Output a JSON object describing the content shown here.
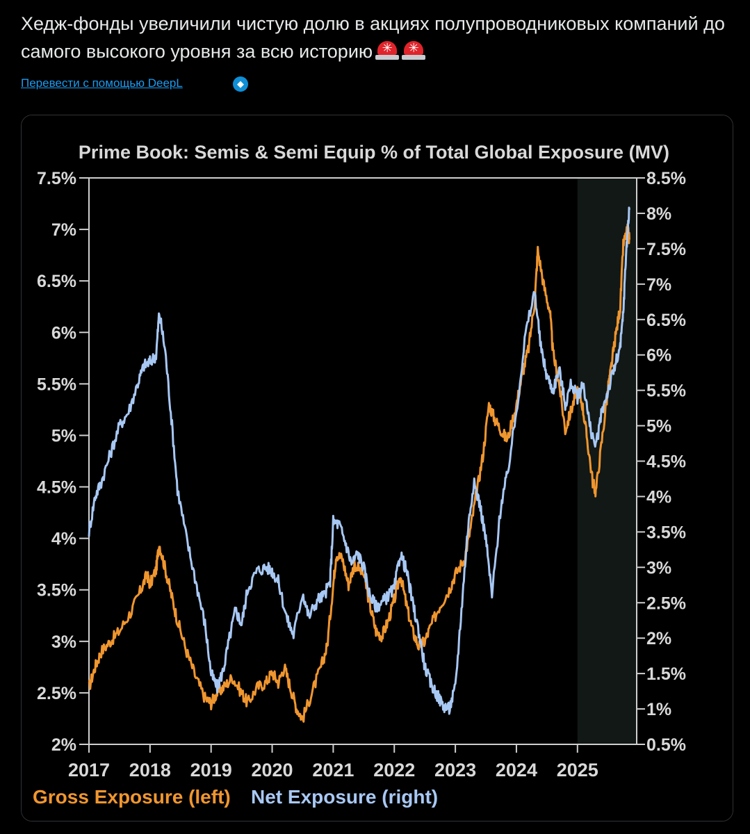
{
  "post": {
    "text": "Хедж-фонды увеличили чистую долю в акциях полупроводниковых компаний до самого высокого уровня за всю историю",
    "emoji": [
      "rotating-light",
      "rotating-light"
    ],
    "translate_link": "Перевести с помощью DeepL",
    "deepl_icon": "deepl-icon"
  },
  "colors": {
    "gross": "#f0962f",
    "net": "#a8c8f4",
    "background": "#000000",
    "link": "#1d9bf0",
    "highlight": "#121815"
  },
  "chart_data": {
    "type": "line",
    "title": "Prime Book: Semis & Semi Equip % of Total Global Exposure (MV)",
    "x_tick_labels": [
      "2017",
      "2018",
      "2019",
      "2020",
      "2021",
      "2022",
      "2023",
      "2024",
      "2025"
    ],
    "xlim": [
      2017.0,
      2025.97
    ],
    "y_left": {
      "ylim": [
        2.0,
        7.5
      ],
      "ticks": [
        2.0,
        2.5,
        3.0,
        3.5,
        4.0,
        4.5,
        5.0,
        5.5,
        6.0,
        6.5,
        7.0,
        7.5
      ],
      "tick_labels": [
        "2%",
        "2.5%",
        "3%",
        "3.5%",
        "4%",
        "4.5%",
        "5%",
        "5.5%",
        "6%",
        "6.5%",
        "7%",
        "7.5%"
      ]
    },
    "y_right": {
      "ylim": [
        0.5,
        8.5
      ],
      "ticks": [
        0.5,
        1.0,
        1.5,
        2.0,
        2.5,
        3.0,
        3.5,
        4.0,
        4.5,
        5.0,
        5.5,
        6.0,
        6.5,
        7.0,
        7.5,
        8.0,
        8.5
      ],
      "tick_labels": [
        "0.5%",
        "1%",
        "1.5%",
        "2%",
        "2.5%",
        "3%",
        "3.5%",
        "4%",
        "4.5%",
        "5%",
        "5.5%",
        "6%",
        "6.5%",
        "7%",
        "7.5%",
        "8%",
        "8.5%"
      ]
    },
    "highlight_region": [
      2025.0,
      2025.97
    ],
    "legend": [
      "Gross Exposure (left)",
      "Net Exposure (right)"
    ],
    "series": [
      {
        "name": "Gross Exposure (left)",
        "axis": "left",
        "x": [
          2017.0,
          2017.1,
          2017.2,
          2017.35,
          2017.5,
          2017.7,
          2017.85,
          2017.95,
          2018.0,
          2018.1,
          2018.15,
          2018.25,
          2018.35,
          2018.45,
          2018.6,
          2018.75,
          2018.9,
          2019.0,
          2019.1,
          2019.2,
          2019.35,
          2019.5,
          2019.6,
          2019.75,
          2019.9,
          2020.0,
          2020.1,
          2020.2,
          2020.3,
          2020.4,
          2020.5,
          2020.65,
          2020.8,
          2020.9,
          2021.0,
          2021.05,
          2021.15,
          2021.25,
          2021.35,
          2021.5,
          2021.6,
          2021.7,
          2021.8,
          2021.9,
          2022.0,
          2022.1,
          2022.2,
          2022.3,
          2022.4,
          2022.5,
          2022.6,
          2022.75,
          2022.9,
          2023.0,
          2023.15,
          2023.25,
          2023.35,
          2023.45,
          2023.55,
          2023.65,
          2023.75,
          2023.85,
          2024.0,
          2024.1,
          2024.2,
          2024.3,
          2024.35,
          2024.45,
          2024.55,
          2024.6,
          2024.7,
          2024.8,
          2024.9,
          2025.0,
          2025.08,
          2025.15,
          2025.25,
          2025.3,
          2025.4,
          2025.5,
          2025.55,
          2025.62,
          2025.7,
          2025.75,
          2025.82,
          2025.85
        ],
        "values": [
          2.55,
          2.75,
          2.9,
          3.0,
          3.1,
          3.3,
          3.5,
          3.65,
          3.55,
          3.7,
          3.95,
          3.7,
          3.45,
          3.2,
          2.9,
          2.65,
          2.45,
          2.4,
          2.5,
          2.55,
          2.65,
          2.5,
          2.4,
          2.55,
          2.6,
          2.7,
          2.6,
          2.75,
          2.55,
          2.35,
          2.25,
          2.5,
          2.75,
          2.95,
          3.55,
          3.85,
          3.8,
          3.55,
          3.75,
          3.65,
          3.35,
          3.1,
          3.05,
          3.2,
          3.4,
          3.65,
          3.35,
          3.1,
          2.95,
          3.0,
          3.15,
          3.35,
          3.5,
          3.65,
          3.8,
          4.1,
          4.45,
          4.8,
          5.3,
          5.15,
          5.05,
          4.95,
          5.3,
          5.6,
          5.85,
          6.3,
          6.8,
          6.45,
          6.2,
          5.8,
          5.5,
          5.05,
          5.25,
          5.45,
          5.3,
          5.0,
          4.55,
          4.45,
          4.95,
          5.45,
          5.65,
          5.95,
          6.25,
          6.85,
          7.0,
          6.9
        ]
      },
      {
        "name": "Net Exposure (right)",
        "axis": "right",
        "x": [
          2017.0,
          2017.1,
          2017.2,
          2017.35,
          2017.5,
          2017.65,
          2017.8,
          2017.9,
          2018.0,
          2018.1,
          2018.15,
          2018.25,
          2018.35,
          2018.45,
          2018.6,
          2018.75,
          2018.9,
          2019.0,
          2019.1,
          2019.2,
          2019.3,
          2019.4,
          2019.5,
          2019.6,
          2019.75,
          2019.9,
          2020.0,
          2020.1,
          2020.25,
          2020.35,
          2020.5,
          2020.6,
          2020.75,
          2020.85,
          2020.95,
          2021.0,
          2021.1,
          2021.2,
          2021.3,
          2021.4,
          2021.5,
          2021.6,
          2021.7,
          2021.8,
          2021.9,
          2022.0,
          2022.1,
          2022.2,
          2022.3,
          2022.4,
          2022.5,
          2022.6,
          2022.7,
          2022.8,
          2022.9,
          2023.0,
          2023.1,
          2023.2,
          2023.3,
          2023.4,
          2023.5,
          2023.6,
          2023.75,
          2023.85,
          2024.0,
          2024.15,
          2024.3,
          2024.4,
          2024.5,
          2024.6,
          2024.7,
          2024.8,
          2024.9,
          2025.0,
          2025.1,
          2025.2,
          2025.3,
          2025.4,
          2025.5,
          2025.6,
          2025.7,
          2025.75,
          2025.8,
          2025.85
        ],
        "values": [
          3.5,
          4.0,
          4.2,
          4.6,
          5.0,
          5.2,
          5.6,
          5.85,
          5.9,
          6.0,
          6.6,
          6.05,
          5.1,
          4.1,
          3.4,
          2.8,
          2.2,
          1.5,
          1.3,
          1.55,
          2.0,
          2.4,
          2.2,
          2.7,
          2.95,
          3.0,
          2.95,
          2.8,
          2.25,
          2.05,
          2.65,
          2.3,
          2.55,
          2.6,
          2.8,
          3.65,
          3.6,
          3.35,
          3.05,
          3.2,
          3.0,
          2.6,
          2.45,
          2.5,
          2.6,
          2.7,
          3.2,
          2.95,
          2.5,
          2.1,
          1.6,
          1.35,
          1.2,
          1.05,
          1.0,
          1.3,
          2.4,
          3.5,
          4.2,
          3.9,
          3.4,
          2.6,
          3.9,
          4.3,
          5.2,
          6.3,
          6.9,
          6.1,
          5.7,
          5.5,
          5.8,
          5.3,
          5.6,
          5.4,
          5.6,
          5.0,
          4.7,
          5.2,
          5.5,
          5.8,
          6.1,
          6.6,
          7.5,
          8.05
        ]
      }
    ]
  }
}
